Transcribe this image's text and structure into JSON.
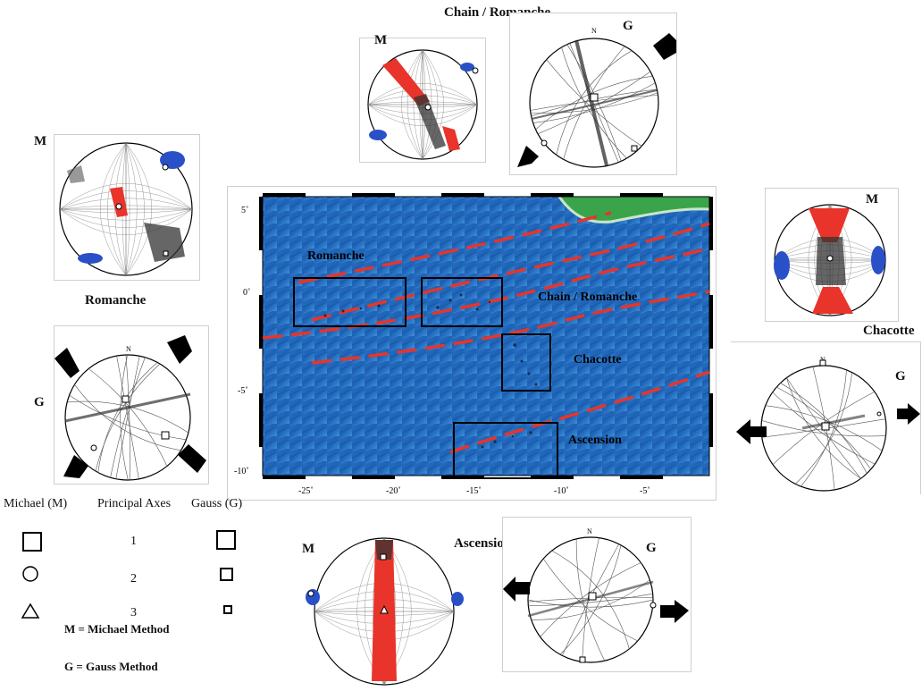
{
  "regions": {
    "chain_romanche": "Chain / Romanche",
    "romanche": "Romanche",
    "chacotte": "Chacotte",
    "ascension": "Ascension"
  },
  "method_letters": {
    "michael": "M",
    "gauss": "G"
  },
  "north_label": "N",
  "map": {
    "labels": {
      "romanche": "Romanche",
      "chain_romanche": "Chain / Romanche",
      "chacotte": "Chacotte",
      "ascension": "Ascension"
    },
    "x_ticks": [
      "-25˚",
      "-20˚",
      "-15˚",
      "-10˚",
      "-5˚"
    ],
    "y_ticks": [
      "5˚",
      "0˚",
      "-5˚",
      "-10˚"
    ],
    "colors": {
      "ocean_deep": "#1c63b8",
      "ocean_shallow": "#3f8fd6",
      "land": "#3aa44a",
      "fault": "#e8342a"
    }
  },
  "legend": {
    "headers": {
      "michael": "Michael (M)",
      "axes": "Principal Axes",
      "gauss": "Gauss (G)"
    },
    "axis_numbers": [
      "1",
      "2",
      "3"
    ],
    "notes": {
      "m": "M = Michael Method",
      "g": "G = Gauss Method"
    }
  },
  "colors": {
    "sigma1": "#e8342a",
    "sigma3": "#2a50c8",
    "points": "#222222"
  }
}
